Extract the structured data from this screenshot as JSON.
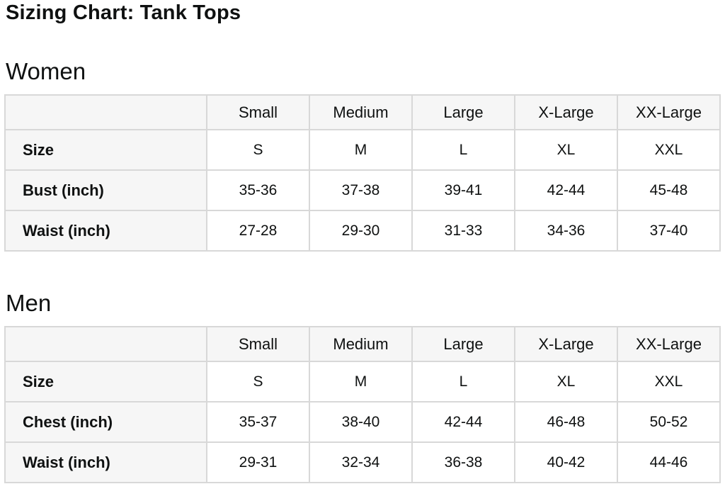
{
  "page": {
    "title": "Sizing Chart: Tank Tops"
  },
  "colors": {
    "text": "#0f1111",
    "header_bg": "#f6f6f6",
    "border": "#d8d8d8",
    "page_bg": "#ffffff"
  },
  "sections": [
    {
      "heading": "Women",
      "table": {
        "column_headers": [
          "Small",
          "Medium",
          "Large",
          "X-Large",
          "XX-Large"
        ],
        "rows": [
          {
            "label": "Size",
            "values": [
              "S",
              "M",
              "L",
              "XL",
              "XXL"
            ]
          },
          {
            "label": "Bust (inch)",
            "values": [
              "35-36",
              "37-38",
              "39-41",
              "42-44",
              "45-48"
            ]
          },
          {
            "label": "Waist (inch)",
            "values": [
              "27-28",
              "29-30",
              "31-33",
              "34-36",
              "37-40"
            ]
          }
        ]
      }
    },
    {
      "heading": "Men",
      "table": {
        "column_headers": [
          "Small",
          "Medium",
          "Large",
          "X-Large",
          "XX-Large"
        ],
        "rows": [
          {
            "label": "Size",
            "values": [
              "S",
              "M",
              "L",
              "XL",
              "XXL"
            ]
          },
          {
            "label": "Chest (inch)",
            "values": [
              "35-37",
              "38-40",
              "42-44",
              "46-48",
              "50-52"
            ]
          },
          {
            "label": "Waist (inch)",
            "values": [
              "29-31",
              "32-34",
              "36-38",
              "40-42",
              "44-46"
            ]
          }
        ]
      }
    }
  ]
}
